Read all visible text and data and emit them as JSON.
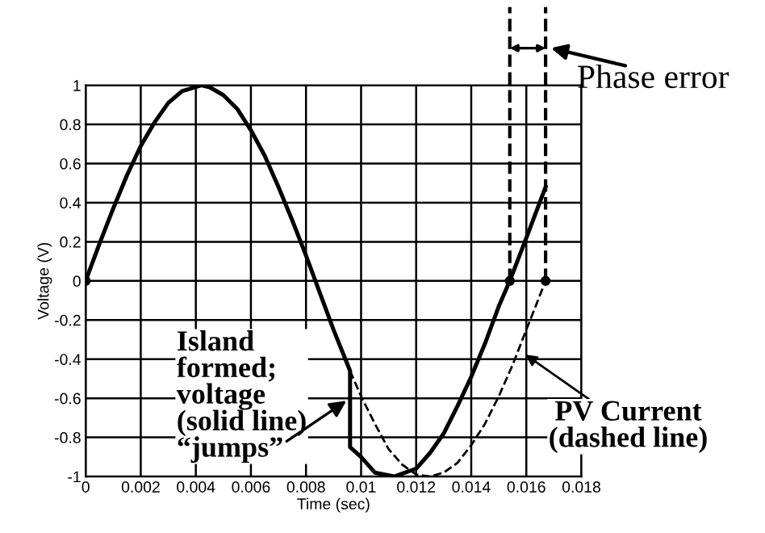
{
  "chart_data": {
    "type": "line",
    "xlabel": "Time (sec)",
    "ylabel": "Voltage (V)",
    "xlim": [
      0,
      0.018
    ],
    "xticks": [
      0,
      0.002,
      0.004,
      0.006,
      0.008,
      {
        "value": 0.01,
        "label": "0.01"
      },
      0.012,
      0.014,
      0.016,
      0.018
    ],
    "ylim": [
      -1,
      1
    ],
    "yticks": [
      -1,
      -0.8,
      -0.6,
      -0.4,
      -0.2,
      0,
      0.2,
      0.4,
      0.6,
      0.8,
      1
    ],
    "grid": true,
    "legend": false,
    "series": [
      {
        "color": "#000000",
        "line_style": "solid",
        "x": [
          0,
          0.0005,
          0.001,
          0.0015,
          0.002,
          0.0025,
          0.003,
          0.0035,
          0.0042,
          0.0045,
          0.005,
          0.0055,
          0.006,
          0.0065,
          0.007,
          0.0075,
          0.008,
          0.0085,
          0.009,
          0.0096,
          0.0096,
          0.01,
          0.0105,
          0.0112,
          0.012,
          0.0125,
          0.013,
          0.0135,
          0.014,
          0.0145,
          0.015,
          0.0154,
          0.016,
          0.0167
        ],
        "values": [
          0,
          0.19,
          0.37,
          0.54,
          0.69,
          0.81,
          0.91,
          0.97,
          1,
          0.99,
          0.95,
          0.88,
          0.77,
          0.64,
          0.48,
          0.31,
          0.13,
          -0.06,
          -0.25,
          -0.46,
          -0.85,
          -0.9,
          -0.98,
          -1,
          -0.96,
          -0.88,
          -0.78,
          -0.64,
          -0.49,
          -0.32,
          -0.13,
          0,
          0.22,
          0.48
        ]
      },
      {
        "color": "#000000",
        "line_style": "dashed",
        "x": [
          0.0096,
          0.01,
          0.0105,
          0.011,
          0.0115,
          0.012,
          0.0125,
          0.013,
          0.0135,
          0.014,
          0.0145,
          0.015,
          0.0155,
          0.016,
          0.0167
        ],
        "values": [
          -0.46,
          -0.59,
          -0.73,
          -0.86,
          -0.94,
          -0.99,
          -1,
          -0.98,
          -0.93,
          -0.84,
          -0.73,
          -0.59,
          -0.43,
          -0.25,
          0
        ]
      },
      {
        "type": "scatter",
        "color": "#000000",
        "marker": "circle",
        "x": [
          0,
          0.0154,
          0.0167
        ],
        "values": [
          0,
          0,
          0
        ]
      }
    ],
    "ref_lines": [
      {
        "axis": "x",
        "value": 0.0154,
        "color": "#000000",
        "line_style": "dashed"
      },
      {
        "axis": "x",
        "value": 0.0167,
        "color": "#000000",
        "line_style": "dashed"
      }
    ],
    "annotations": [
      {
        "text": "Island\nformed;\nvoltage\n(solid line)\n“jumps”",
        "x": 0.0096,
        "y": -0.6
      },
      {
        "text": "PV Current\n(dashed line)",
        "x": 0.0159,
        "y": -0.37
      },
      "Phase error"
    ]
  }
}
